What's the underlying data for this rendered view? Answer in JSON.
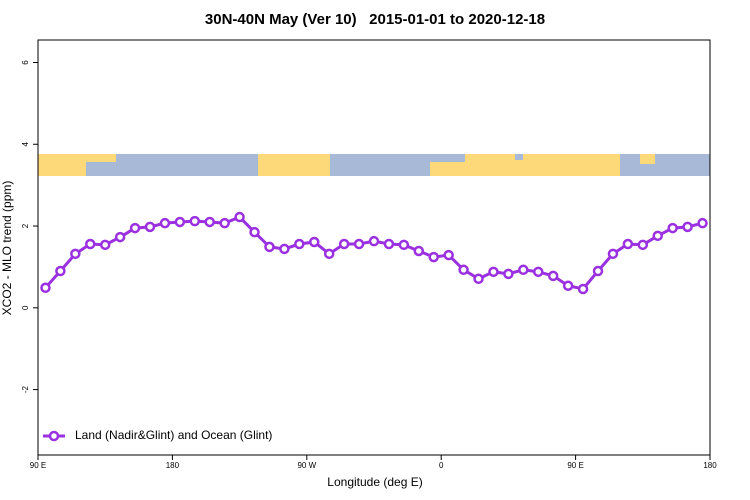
{
  "chart_data": {
    "type": "line",
    "title": "30N-40N May (Ver 10)   2015-01-01 to 2020-12-18",
    "x_label": "Longitude (deg E)",
    "y_label": "XCO2 - MLO trend (ppm)",
    "x": [
      95,
      105,
      115,
      125,
      135,
      145,
      155,
      165,
      175,
      185,
      195,
      205,
      215,
      225,
      235,
      245,
      255,
      265,
      275,
      285,
      295,
      305,
      315,
      325,
      335,
      345,
      355,
      365,
      375,
      385,
      395,
      405,
      415,
      425,
      435,
      445,
      455,
      465,
      475,
      485,
      495,
      505,
      515,
      525,
      535
    ],
    "series": [
      {
        "name": "Land (Nadir&Glint) and Ocean (Glint)",
        "color": "#9b30e0",
        "values": [
          0.49,
          0.9,
          1.32,
          1.56,
          1.54,
          1.73,
          1.95,
          1.98,
          2.07,
          2.1,
          2.12,
          2.1,
          2.07,
          2.22,
          1.85,
          1.49,
          1.44,
          1.56,
          1.61,
          1.32,
          1.56,
          1.56,
          1.63,
          1.56,
          1.54,
          1.39,
          1.24,
          1.29,
          0.93,
          0.71,
          0.88,
          0.83,
          0.93,
          0.88,
          0.78,
          0.54,
          0.46,
          0.9,
          1.32,
          1.56,
          1.54,
          1.76,
          1.95,
          1.98,
          2.07
        ]
      }
    ],
    "xlim": [
      90,
      540
    ],
    "xticks": [
      {
        "value": 90,
        "label": "90 E"
      },
      180,
      {
        "value": 270,
        "label": "90 W"
      },
      {
        "value": 360,
        "label": "0"
      },
      {
        "value": 450,
        "label": "90 E"
      },
      {
        "value": 540,
        "label": "180"
      }
    ],
    "ylim": [
      -3.6,
      6.55
    ],
    "yticks": [
      -2,
      0,
      2,
      4,
      6
    ],
    "legend": "bottom-left"
  }
}
